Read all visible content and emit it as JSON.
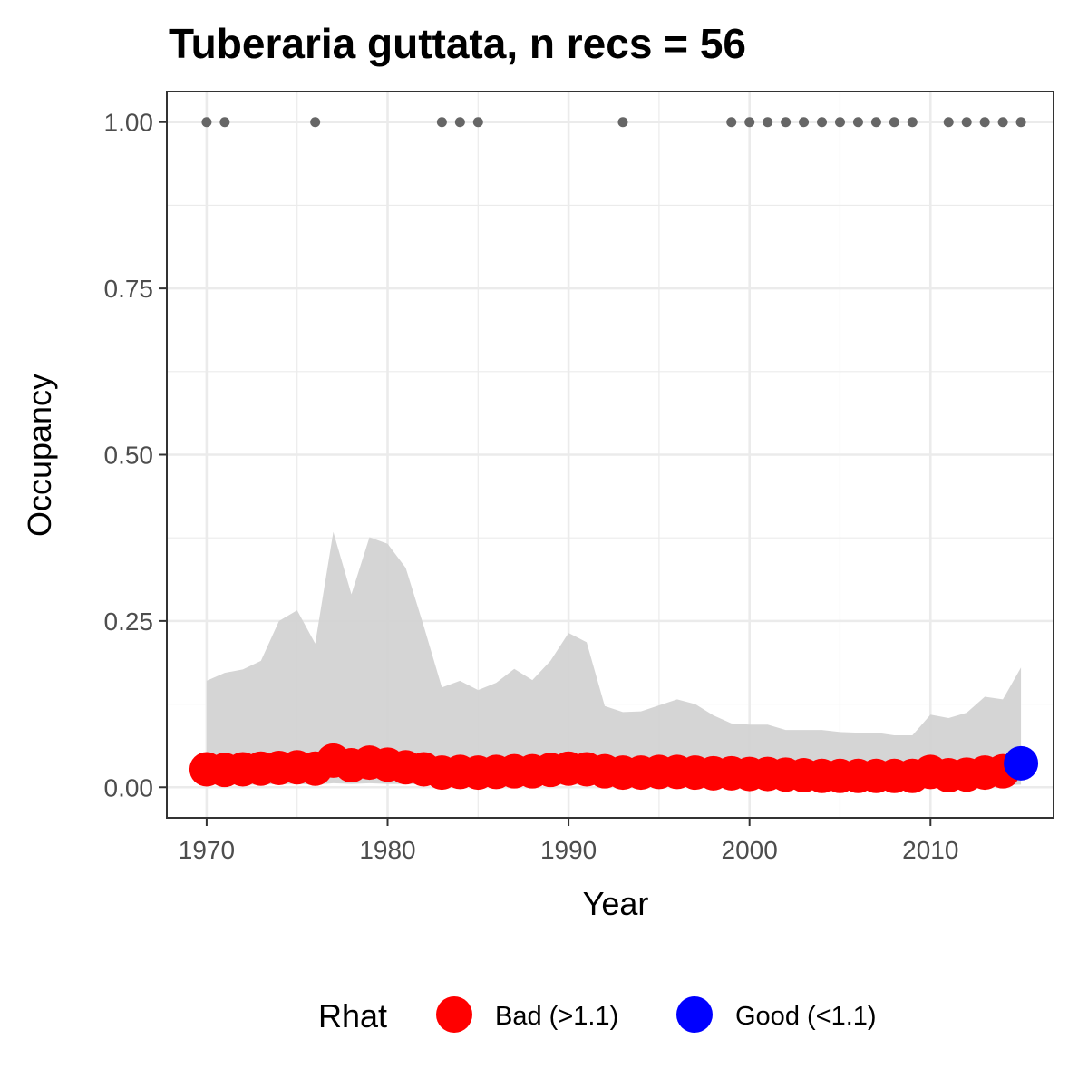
{
  "chart_data": {
    "type": "line",
    "title": "Tuberaria guttata, n recs = 56",
    "xlabel": "Year",
    "ylabel": "Occupancy",
    "xlim": [
      1967.8,
      2016.8
    ],
    "ylim": [
      -0.046,
      1.046
    ],
    "x_ticks": [
      1970,
      1980,
      1990,
      2000,
      2010
    ],
    "x_tick_labels": [
      "1970",
      "1980",
      "1990",
      "2000",
      "2010"
    ],
    "y_ticks": [
      0,
      0.25,
      0.5,
      0.75,
      1
    ],
    "y_tick_labels": [
      "0.00",
      "0.25",
      "0.50",
      "0.75",
      "1.00"
    ],
    "grid": true,
    "legend_position": "bottom",
    "legend": {
      "title": "Rhat",
      "items": [
        {
          "label": "Bad (>1.1)",
          "color": "#ff0000"
        },
        {
          "label": "Good (<1.1)",
          "color": "#0000ff"
        }
      ]
    },
    "colors": {
      "bad": "#ff0000",
      "good": "#0000ff",
      "ribbon": "#d3d3d3",
      "records": "#666666"
    },
    "years": [
      1970,
      1971,
      1972,
      1973,
      1974,
      1975,
      1976,
      1977,
      1978,
      1979,
      1980,
      1981,
      1982,
      1983,
      1984,
      1985,
      1986,
      1987,
      1988,
      1989,
      1990,
      1991,
      1992,
      1993,
      1994,
      1995,
      1996,
      1997,
      1998,
      1999,
      2000,
      2001,
      2002,
      2003,
      2004,
      2005,
      2006,
      2007,
      2008,
      2009,
      2010,
      2011,
      2012,
      2013,
      2014,
      2015
    ],
    "occupancy": [
      0.027,
      0.026,
      0.027,
      0.028,
      0.029,
      0.03,
      0.028,
      0.04,
      0.033,
      0.037,
      0.034,
      0.03,
      0.027,
      0.022,
      0.023,
      0.022,
      0.023,
      0.024,
      0.024,
      0.026,
      0.028,
      0.027,
      0.024,
      0.022,
      0.022,
      0.023,
      0.023,
      0.022,
      0.021,
      0.021,
      0.02,
      0.02,
      0.019,
      0.018,
      0.017,
      0.017,
      0.017,
      0.017,
      0.017,
      0.017,
      0.023,
      0.018,
      0.019,
      0.022,
      0.024,
      0.036
    ],
    "ribbon_upper": [
      0.16,
      0.172,
      0.177,
      0.19,
      0.25,
      0.266,
      0.216,
      0.384,
      0.29,
      0.376,
      0.366,
      0.33,
      0.242,
      0.15,
      0.16,
      0.146,
      0.157,
      0.178,
      0.161,
      0.19,
      0.232,
      0.218,
      0.122,
      0.113,
      0.114,
      0.123,
      0.132,
      0.125,
      0.108,
      0.096,
      0.094,
      0.094,
      0.086,
      0.086,
      0.086,
      0.083,
      0.082,
      0.082,
      0.078,
      0.078,
      0.109,
      0.104,
      0.112,
      0.136,
      0.132,
      0.18
    ],
    "ribbon_lower": [
      0.004,
      0.004,
      0.004,
      0.004,
      0.005,
      0.005,
      0.004,
      0.006,
      0.005,
      0.006,
      0.005,
      0.005,
      0.004,
      0.003,
      0.003,
      0.003,
      0.003,
      0.003,
      0.003,
      0.004,
      0.004,
      0.004,
      0.003,
      0.003,
      0.003,
      0.003,
      0.003,
      0.003,
      0.003,
      0.003,
      0.003,
      0.003,
      0.002,
      0.002,
      0.002,
      0.002,
      0.002,
      0.002,
      0.002,
      0.002,
      0.003,
      0.002,
      0.002,
      0.003,
      0.003,
      0.004
    ],
    "rhat_status": [
      "bad",
      "bad",
      "bad",
      "bad",
      "bad",
      "bad",
      "bad",
      "bad",
      "bad",
      "bad",
      "bad",
      "bad",
      "bad",
      "bad",
      "bad",
      "bad",
      "bad",
      "bad",
      "bad",
      "bad",
      "bad",
      "bad",
      "bad",
      "bad",
      "bad",
      "bad",
      "bad",
      "bad",
      "bad",
      "bad",
      "bad",
      "bad",
      "bad",
      "bad",
      "bad",
      "bad",
      "bad",
      "bad",
      "bad",
      "bad",
      "bad",
      "bad",
      "bad",
      "bad",
      "bad",
      "good"
    ],
    "record_years": [
      1970,
      1971,
      1976,
      1983,
      1984,
      1985,
      1993,
      1999,
      2000,
      2001,
      2002,
      2003,
      2004,
      2005,
      2006,
      2007,
      2008,
      2009,
      2011,
      2012,
      2013,
      2014,
      2015
    ],
    "record_value": 1.0
  }
}
